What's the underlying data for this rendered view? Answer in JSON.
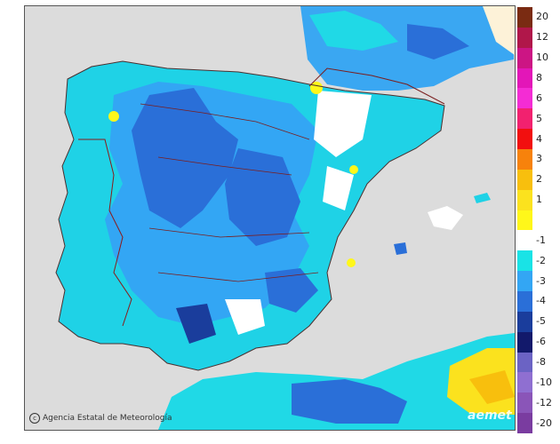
{
  "map": {
    "credit": "Agencia Estatal de Meteorología",
    "watermark": "aemet"
  },
  "legend": {
    "items": [
      {
        "label": "20",
        "color": "#7a2b12"
      },
      {
        "label": "12",
        "color": "#b0174a"
      },
      {
        "label": "10",
        "color": "#cc1584"
      },
      {
        "label": "8",
        "color": "#e316b8"
      },
      {
        "label": "6",
        "color": "#f42cd4"
      },
      {
        "label": "5",
        "color": "#f2216f"
      },
      {
        "label": "4",
        "color": "#f20f0f"
      },
      {
        "label": "3",
        "color": "#f7820c"
      },
      {
        "label": "2",
        "color": "#f8bf0d"
      },
      {
        "label": "1",
        "color": "#fbe21e"
      },
      {
        "label": "",
        "color": "#fff71a"
      },
      {
        "label": "-1",
        "color": "#ffffff"
      },
      {
        "label": "-2",
        "color": "#19e3e6"
      },
      {
        "label": "-3",
        "color": "#33a6f4"
      },
      {
        "label": "-4",
        "color": "#2a6fd8"
      },
      {
        "label": "-5",
        "color": "#1a3d9c"
      },
      {
        "label": "-6",
        "color": "#12196b"
      },
      {
        "label": "-8",
        "color": "#6b63c4"
      },
      {
        "label": "-10",
        "color": "#8f6fd1"
      },
      {
        "label": "-12",
        "color": "#8a55b8"
      },
      {
        "label": "-20",
        "color": "#7a3ca0"
      }
    ]
  }
}
